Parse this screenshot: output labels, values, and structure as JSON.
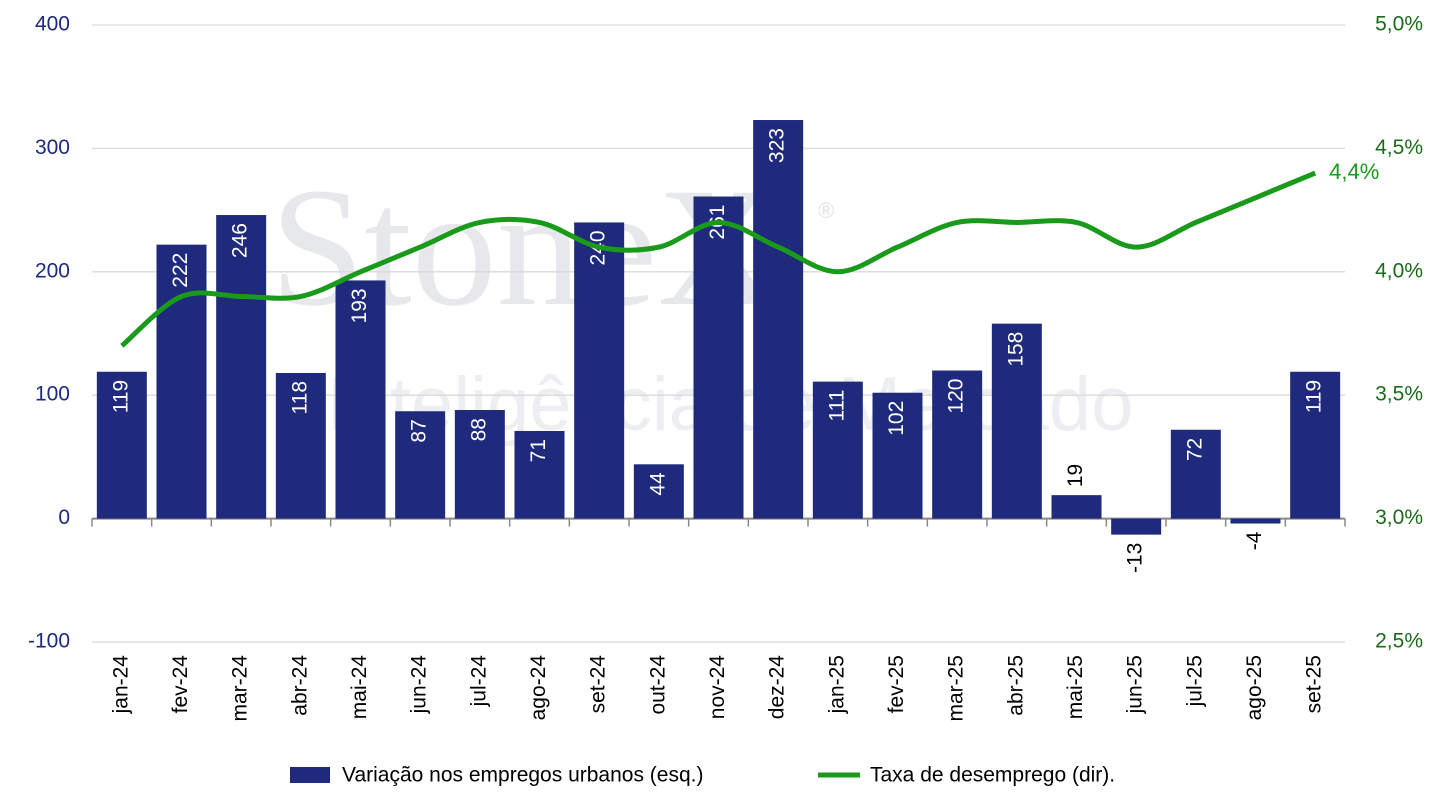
{
  "chart_data": {
    "type": "bar",
    "watermark": [
      "StoneX",
      "®",
      "Inteligência de Mercado"
    ],
    "categories": [
      "jan-24",
      "fev-24",
      "mar-24",
      "abr-24",
      "mai-24",
      "jun-24",
      "jul-24",
      "ago-24",
      "set-24",
      "out-24",
      "nov-24",
      "dez-24",
      "jan-25",
      "fev-25",
      "mar-25",
      "abr-25",
      "mai-25",
      "jun-25",
      "jul-25",
      "ago-25",
      "set-25"
    ],
    "series": [
      {
        "name": "Variação nos empregos urbanos (esq.)",
        "type": "bar",
        "color": "#1f2a7c",
        "values": [
          119,
          222,
          246,
          118,
          193,
          87,
          88,
          71,
          240,
          44,
          261,
          323,
          111,
          102,
          120,
          158,
          19,
          -13,
          72,
          -4,
          119
        ]
      },
      {
        "name": "Taxa de desemprego (dir).",
        "type": "line",
        "axis": "y2",
        "color": "#1a9a1a",
        "values": [
          3.7,
          3.9,
          3.9,
          3.9,
          4.0,
          4.1,
          4.2,
          4.2,
          4.1,
          4.1,
          4.2,
          4.1,
          4.0,
          4.1,
          4.2,
          4.2,
          4.2,
          4.1,
          4.2,
          4.3,
          4.4
        ],
        "value_labels": [
          null,
          null,
          null,
          null,
          null,
          null,
          null,
          null,
          null,
          null,
          null,
          null,
          null,
          null,
          null,
          null,
          null,
          null,
          null,
          null,
          "4,4%"
        ]
      }
    ],
    "ylim": [
      -100,
      400
    ],
    "yticks": [
      400,
      300,
      200,
      100,
      0,
      -100
    ],
    "y2lim": [
      2.5,
      5.0
    ],
    "y2ticks": [
      {
        "value": 5.0,
        "label": "5,0%"
      },
      {
        "value": 4.5,
        "label": "4,5%"
      },
      {
        "value": 4.0,
        "label": "4,0%"
      },
      {
        "value": 3.5,
        "label": "3,5%"
      },
      {
        "value": 3.0,
        "label": "3,0%"
      },
      {
        "value": 2.5,
        "label": "2,5%"
      }
    ],
    "grid": true,
    "legend": "bottom"
  }
}
